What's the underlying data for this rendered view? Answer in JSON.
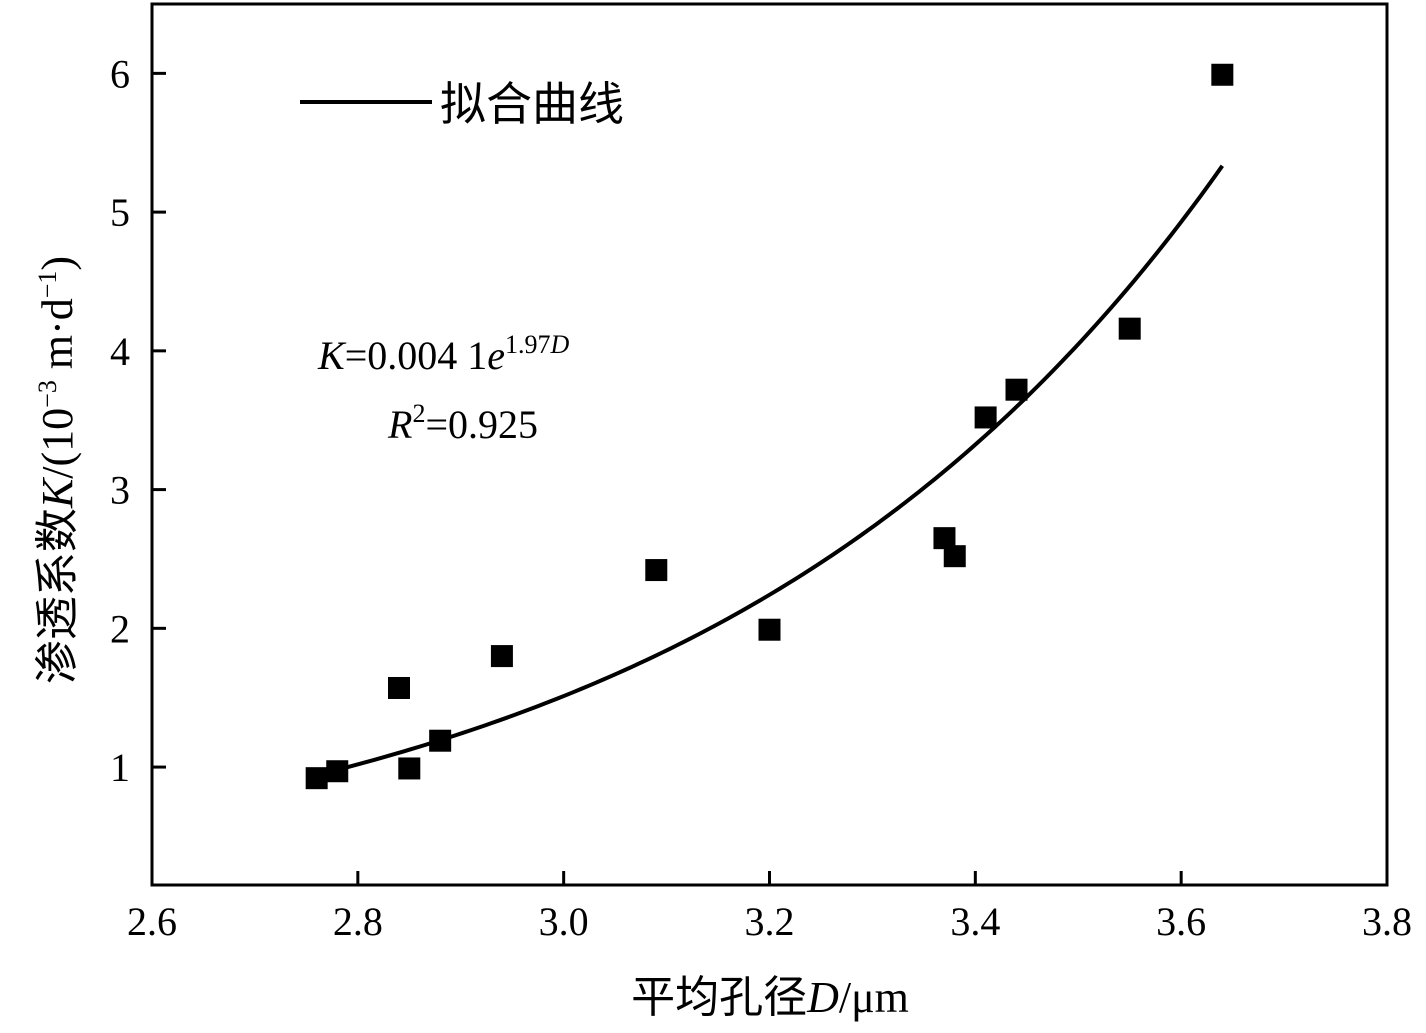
{
  "chart_data": {
    "type": "scatter",
    "title": "",
    "xlabel": "平均孔径D/μm",
    "xlabel_parts": {
      "prefix": "平均孔径",
      "var": "D",
      "unit": "/μm"
    },
    "ylabel": "渗透系数K/(10⁻³ m·d⁻¹)",
    "ylabel_parts": {
      "prefix": "渗透系数",
      "var": "K",
      "mid": "/(10",
      "exp": "−3",
      "unit1": " m·d",
      "exp2": "−1",
      "close": ")"
    },
    "xlim": [
      2.6,
      3.8
    ],
    "ylim": [
      0.15,
      6.5
    ],
    "x_ticks": [
      2.6,
      2.8,
      3.0,
      3.2,
      3.4,
      3.6,
      3.8
    ],
    "x_tick_labels": [
      "2.6",
      "2.8",
      "3.0",
      "3.2",
      "3.4",
      "3.6",
      "3.8"
    ],
    "y_ticks": [
      1,
      2,
      3,
      4,
      5,
      6
    ],
    "y_tick_labels": [
      "1",
      "2",
      "3",
      "4",
      "5",
      "6"
    ],
    "grid": false,
    "legend_position": "top-left",
    "series": [
      {
        "kind": "scatter",
        "marker": "square",
        "color": "#000000",
        "x": [
          2.76,
          2.78,
          2.84,
          2.85,
          2.88,
          2.94,
          3.09,
          3.2,
          3.37,
          3.38,
          3.41,
          3.44,
          3.55,
          3.64
        ],
        "y": [
          0.92,
          0.97,
          1.57,
          0.99,
          1.19,
          1.8,
          2.42,
          1.99,
          2.65,
          2.52,
          3.52,
          3.72,
          4.16,
          5.99
        ]
      },
      {
        "kind": "line",
        "name": "拟合曲线",
        "color": "#000000",
        "fit": {
          "a": 0.0041,
          "b": 1.97,
          "x_from": 2.78,
          "x_to": 3.64
        }
      }
    ],
    "annotations": {
      "equation": {
        "lhs": "K",
        "eq": "=0.004 1",
        "base": "e",
        "exp": "1.97",
        "exp_var": "D"
      },
      "r2": {
        "var": "R",
        "sup": "2",
        "val": "=0.925"
      }
    }
  }
}
